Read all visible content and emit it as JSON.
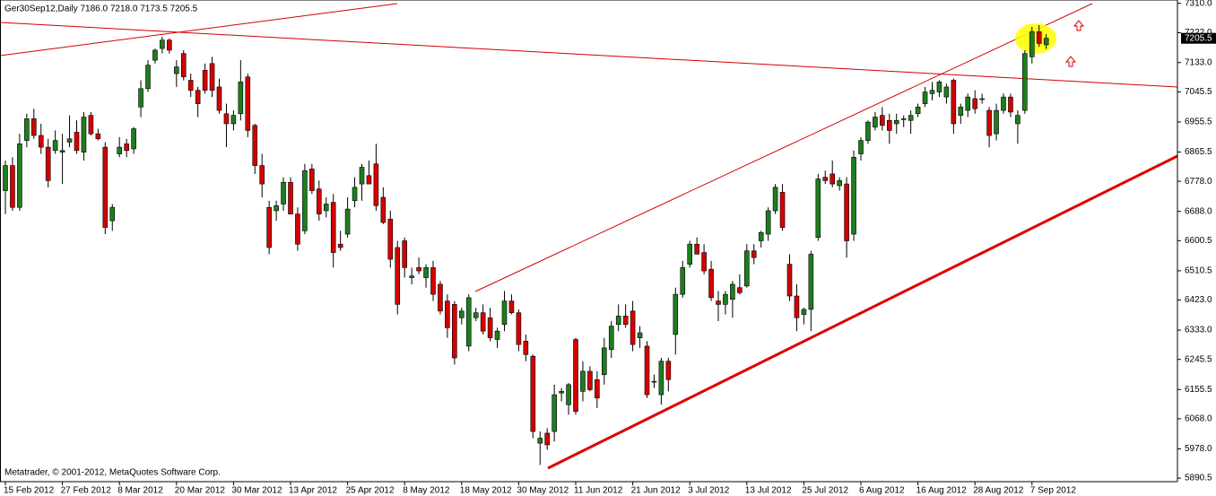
{
  "chart_data": {
    "type": "candlestick",
    "title": "Ger30Sep12,Daily  7186.0 7218.0 7173.5 7205.5",
    "footer": "Metatrader, © 2001-2012, MetaQuotes Software Corp.",
    "up_color": "#1e7d1e",
    "down_color": "#d40000",
    "categories": [
      "15 Feb 2012",
      null,
      null,
      null,
      null,
      null,
      null,
      null,
      "27 Feb 2012",
      null,
      null,
      null,
      null,
      null,
      null,
      null,
      "8 Mar 2012",
      null,
      null,
      null,
      null,
      null,
      null,
      null,
      "20 Mar 2012",
      null,
      null,
      null,
      null,
      null,
      null,
      null,
      "30 Mar 2012",
      null,
      null,
      null,
      null,
      null,
      null,
      null,
      "13 Apr 2012",
      null,
      null,
      null,
      null,
      null,
      null,
      null,
      "25 Apr 2012",
      null,
      null,
      null,
      null,
      null,
      null,
      null,
      "8 May 2012",
      null,
      null,
      null,
      null,
      null,
      null,
      null,
      "18 May 2012",
      null,
      null,
      null,
      null,
      null,
      null,
      null,
      "30 May 2012",
      null,
      null,
      null,
      null,
      null,
      null,
      null,
      "11 Jun 2012",
      null,
      null,
      null,
      null,
      null,
      null,
      null,
      "21 Jun 2012",
      null,
      null,
      null,
      null,
      null,
      null,
      null,
      "3 Jul 2012",
      null,
      null,
      null,
      null,
      null,
      null,
      null,
      "13 Jul 2012",
      null,
      null,
      null,
      null,
      null,
      null,
      null,
      "25 Jul 2012",
      null,
      null,
      null,
      null,
      null,
      null,
      null,
      "6 Aug 2012",
      null,
      null,
      null,
      null,
      null,
      null,
      null,
      "16 Aug 2012",
      null,
      null,
      null,
      null,
      null,
      null,
      null,
      "28 Aug 2012",
      null,
      null,
      null,
      null,
      null,
      null,
      null,
      "7 Sep 2012",
      null,
      null
    ],
    "open": [
      6750,
      6825,
      6700,
      6900,
      6965,
      6915,
      6880,
      6870,
      6865,
      6895,
      6925,
      6865,
      6975,
      6920,
      6880,
      6660,
      6860,
      6890,
      6875,
      7000,
      7055,
      7140,
      7175,
      7200,
      7100,
      7160,
      7080,
      7050,
      7110,
      7130,
      7060,
      6980,
      6950,
      6980,
      7090,
      6945,
      6825,
      6700,
      6690,
      6710,
      6775,
      6680,
      6630,
      6815,
      6755,
      6690,
      6715,
      6590,
      6620,
      6720,
      6770,
      6795,
      6830,
      6730,
      6665,
      6580,
      6600,
      6490,
      6520,
      6490,
      6520,
      6470,
      6420,
      6410,
      6370,
      6285,
      6370,
      6385,
      6370,
      6305,
      6350,
      6420,
      6385,
      6300,
      6255,
      5995,
      6025,
      6030,
      6145,
      6110,
      6305,
      6150,
      6210,
      6185,
      6200,
      6275,
      6350,
      6375,
      6390,
      6310,
      6285,
      6180,
      6140,
      6240,
      6320,
      6440,
      6530,
      6590,
      6565,
      6515,
      6420,
      6410,
      6425,
      6460,
      6465,
      6570,
      6600,
      6620,
      6690,
      6745,
      6530,
      6435,
      6380,
      6395,
      6610,
      6790,
      6800,
      6765,
      6770,
      6620,
      6860,
      6900,
      6940,
      6975,
      6960,
      6950,
      6965,
      6960,
      6980,
      7010,
      7040,
      7045,
      7030,
      7080,
      6975,
      6990,
      7025,
      7025,
      6990,
      6920,
      6990,
      7030,
      6950,
      6990,
      7150,
      7225,
      7186
    ],
    "high": [
      6840,
      6850,
      6920,
      6980,
      6995,
      6950,
      6905,
      6930,
      6920,
      6975,
      6960,
      6985,
      6985,
      6935,
      6895,
      6710,
      6910,
      6905,
      6940,
      7080,
      7140,
      7175,
      7210,
      7205,
      7140,
      7170,
      7100,
      7060,
      7130,
      7150,
      7085,
      7010,
      6990,
      7140,
      7100,
      6950,
      6860,
      6720,
      6720,
      6790,
      6790,
      6700,
      6830,
      6830,
      6780,
      6730,
      6740,
      6630,
      6730,
      6790,
      6830,
      6840,
      6890,
      6760,
      6690,
      6600,
      6610,
      6520,
      6550,
      6530,
      6540,
      6480,
      6440,
      6420,
      6400,
      6440,
      6400,
      6410,
      6400,
      6340,
      6450,
      6440,
      6395,
      6320,
      6260,
      6030,
      6040,
      6170,
      6160,
      6175,
      6310,
      6240,
      6225,
      6210,
      6310,
      6360,
      6410,
      6410,
      6420,
      6345,
      6300,
      6200,
      6250,
      6250,
      6460,
      6540,
      6600,
      6610,
      6590,
      6540,
      6450,
      6450,
      6480,
      6500,
      6590,
      6590,
      6630,
      6700,
      6770,
      6770,
      6560,
      6470,
      6400,
      6570,
      6800,
      6810,
      6840,
      6790,
      6790,
      6870,
      6910,
      6960,
      6985,
      7000,
      6980,
      6980,
      6975,
      6990,
      7010,
      7060,
      7075,
      7080,
      7070,
      7085,
      7010,
      7040,
      7050,
      7040,
      7000,
      7010,
      7040,
      7040,
      6990,
      7170,
      7240,
      7245,
      7218
    ],
    "low": [
      6680,
      6690,
      6690,
      6880,
      6905,
      6860,
      6760,
      6860,
      6770,
      6880,
      6860,
      6840,
      6915,
      6900,
      6620,
      6630,
      6850,
      6850,
      6860,
      6970,
      7045,
      7130,
      7160,
      7160,
      7060,
      7080,
      7030,
      6970,
      7040,
      7030,
      6980,
      6880,
      6930,
      6960,
      6910,
      6800,
      6730,
      6560,
      6660,
      6690,
      6690,
      6570,
      6620,
      6740,
      6660,
      6670,
      6520,
      6570,
      6610,
      6700,
      6720,
      6770,
      6690,
      6650,
      6520,
      6380,
      6490,
      6470,
      6500,
      6460,
      6420,
      6380,
      6310,
      6230,
      6350,
      6270,
      6360,
      6320,
      6300,
      6280,
      6330,
      6380,
      6270,
      6240,
      6010,
      5930,
      5975,
      6000,
      6120,
      6080,
      6080,
      6120,
      6150,
      6100,
      6170,
      6250,
      6330,
      6340,
      6270,
      6280,
      6130,
      6160,
      6110,
      6150,
      6260,
      6430,
      6520,
      6560,
      6500,
      6420,
      6360,
      6380,
      6370,
      6440,
      6460,
      6530,
      6580,
      6600,
      6680,
      6630,
      6420,
      6330,
      6350,
      6330,
      6600,
      6770,
      6760,
      6750,
      6550,
      6600,
      6840,
      6890,
      6930,
      6930,
      6890,
      6920,
      6940,
      6920,
      6970,
      7000,
      7020,
      7030,
      7010,
      6920,
      6950,
      6970,
      6980,
      7010,
      6880,
      6900,
      6980,
      6970,
      6890,
      6980,
      7130,
      7180,
      7173.5
    ],
    "close": [
      6825,
      6700,
      6890,
      6965,
      6915,
      6880,
      6780,
      6900,
      6870,
      6905,
      6870,
      6970,
      6920,
      6905,
      6640,
      6700,
      6880,
      6870,
      6935,
      7055,
      7125,
      7170,
      7200,
      7170,
      7120,
      7090,
      7050,
      7010,
      7050,
      7050,
      6990,
      6950,
      6975,
      7075,
      6930,
      6825,
      6770,
      6580,
      6705,
      6775,
      6680,
      6590,
      6810,
      6750,
      6680,
      6710,
      6565,
      6580,
      6695,
      6760,
      6820,
      6770,
      6705,
      6655,
      6545,
      6410,
      6520,
      6495,
      6510,
      6520,
      6440,
      6390,
      6340,
      6250,
      6390,
      6430,
      6385,
      6330,
      6310,
      6330,
      6420,
      6385,
      6290,
      6260,
      6030,
      6010,
      5990,
      6140,
      6150,
      6170,
      6090,
      6210,
      6155,
      6130,
      6280,
      6345,
      6375,
      6350,
      6290,
      6325,
      6140,
      6180,
      6240,
      6185,
      6440,
      6520,
      6590,
      6560,
      6510,
      6430,
      6410,
      6440,
      6470,
      6445,
      6570,
      6550,
      6625,
      6690,
      6760,
      6640,
      6435,
      6370,
      6395,
      6560,
      6785,
      6780,
      6770,
      6780,
      6600,
      6850,
      6900,
      6955,
      6970,
      6945,
      6930,
      6960,
      6965,
      6975,
      7000,
      7045,
      7050,
      7075,
      7060,
      6950,
      7000,
      7030,
      6995,
      7025,
      6915,
      6990,
      7030,
      6985,
      6975,
      7160,
      7225,
      7190,
      7205.5
    ],
    "last_price": {
      "value": 7205.5,
      "label": "7205.5"
    },
    "ylim": [
      5880,
      7320
    ],
    "yticks": [
      {
        "value": 7310,
        "label": "7310.0"
      },
      {
        "value": 7222,
        "label": "7222.0"
      },
      {
        "value": 7133,
        "label": "7133.0"
      },
      {
        "value": 7045.5,
        "label": "7045.5"
      },
      {
        "value": 6955.5,
        "label": "6955.5"
      },
      {
        "value": 6865.5,
        "label": "6865.5"
      },
      {
        "value": 6778,
        "label": "6778.0"
      },
      {
        "value": 6688,
        "label": "6688.0"
      },
      {
        "value": 6600.5,
        "label": "6600.5"
      },
      {
        "value": 6510.5,
        "label": "6510.5"
      },
      {
        "value": 6423,
        "label": "6423.0"
      },
      {
        "value": 6333,
        "label": "6333.0"
      },
      {
        "value": 6245.5,
        "label": "6245.5"
      },
      {
        "value": 6155.5,
        "label": "6155.5"
      },
      {
        "value": 6068,
        "label": "6068.0"
      },
      {
        "value": 5978,
        "label": "5978.0"
      },
      {
        "value": 5890.5,
        "label": "5890.5"
      }
    ],
    "grid": false
  }
}
